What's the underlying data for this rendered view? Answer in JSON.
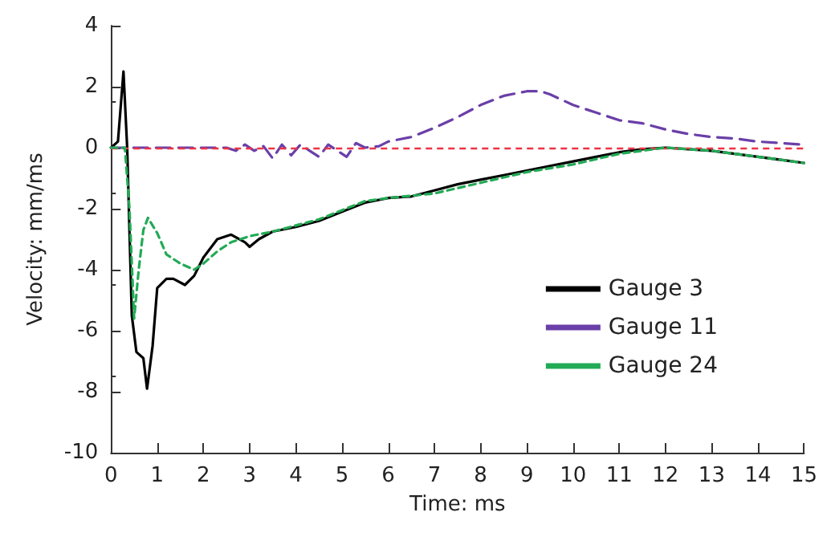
{
  "chart_data": {
    "type": "line",
    "xlabel": "Time: ms",
    "ylabel": "Velocity: mm/ms",
    "xlim": [
      0,
      15
    ],
    "xticks": [
      0,
      1,
      2,
      3,
      4,
      5,
      6,
      7,
      8,
      9,
      10,
      11,
      12,
      13,
      14,
      15
    ],
    "ylim": [
      -10,
      4
    ],
    "yticks": [
      -10,
      -8,
      -6,
      -4,
      -2,
      0,
      2,
      4
    ],
    "grid": false,
    "legend": "right",
    "marker": "none",
    "ref_lines": [
      {
        "axis": "y",
        "value": 0,
        "color": "#ee3344",
        "line_style": "dotted"
      }
    ],
    "series": [
      {
        "name": "Gauge 3",
        "color": "#000000",
        "line_style": "solid",
        "x": [
          0,
          0.15,
          0.27,
          0.35,
          0.45,
          0.55,
          0.7,
          0.78,
          0.9,
          1.0,
          1.2,
          1.35,
          1.6,
          1.8,
          2.0,
          2.3,
          2.6,
          2.9,
          3.0,
          3.2,
          3.5,
          4,
          4.5,
          5,
          5.5,
          6,
          6.5,
          7,
          7.5,
          8,
          8.5,
          9,
          9.5,
          10,
          10.5,
          11,
          11.5,
          12,
          12.5,
          13,
          13.5,
          14,
          14.5,
          15
        ],
        "values": [
          0,
          0.2,
          2.5,
          0,
          -5.5,
          -6.7,
          -6.9,
          -7.9,
          -6.5,
          -4.6,
          -4.3,
          -4.3,
          -4.5,
          -4.2,
          -3.6,
          -3.0,
          -2.85,
          -3.1,
          -3.25,
          -3.0,
          -2.75,
          -2.6,
          -2.4,
          -2.1,
          -1.8,
          -1.65,
          -1.6,
          -1.4,
          -1.2,
          -1.05,
          -0.9,
          -0.75,
          -0.6,
          -0.45,
          -0.3,
          -0.15,
          -0.05,
          0,
          -0.05,
          -0.1,
          -0.2,
          -0.3,
          -0.4,
          -0.5
        ]
      },
      {
        "name": "Gauge 11",
        "color": "#6a3fa8",
        "line_style": "dashed",
        "x": [
          0,
          2.5,
          2.7,
          2.9,
          3.1,
          3.3,
          3.5,
          3.7,
          3.9,
          4.1,
          4.3,
          4.5,
          4.7,
          4.9,
          5.1,
          5.3,
          5.5,
          5.8,
          6,
          6.5,
          7,
          7.5,
          8,
          8.5,
          9,
          9.3,
          9.5,
          10,
          10.5,
          11,
          11.5,
          12,
          12.5,
          13,
          13.5,
          14,
          14.5,
          15
        ],
        "values": [
          0,
          0,
          -0.1,
          0.1,
          -0.1,
          0.05,
          -0.35,
          0.1,
          -0.25,
          0.1,
          -0.1,
          -0.3,
          0.1,
          -0.1,
          -0.3,
          0.15,
          0,
          0.05,
          0.2,
          0.35,
          0.65,
          1.0,
          1.4,
          1.7,
          1.85,
          1.85,
          1.75,
          1.4,
          1.15,
          0.9,
          0.8,
          0.6,
          0.45,
          0.35,
          0.3,
          0.2,
          0.15,
          0.1
        ]
      },
      {
        "name": "Gauge 24",
        "color": "#22aa55",
        "line_style": "dotted",
        "x": [
          0,
          0.3,
          0.4,
          0.5,
          0.6,
          0.7,
          0.8,
          1.0,
          1.2,
          1.5,
          1.8,
          2.0,
          2.3,
          2.6,
          3,
          3.5,
          4,
          4.5,
          5,
          5.5,
          6,
          7,
          8,
          9,
          10,
          11,
          12,
          13,
          14,
          15
        ],
        "values": [
          0,
          0,
          -2,
          -5.6,
          -4,
          -2.7,
          -2.3,
          -2.8,
          -3.5,
          -3.8,
          -4.0,
          -3.8,
          -3.4,
          -3.1,
          -2.9,
          -2.75,
          -2.55,
          -2.35,
          -2.05,
          -1.75,
          -1.65,
          -1.5,
          -1.15,
          -0.8,
          -0.55,
          -0.2,
          0,
          -0.1,
          -0.3,
          -0.5
        ]
      }
    ]
  }
}
